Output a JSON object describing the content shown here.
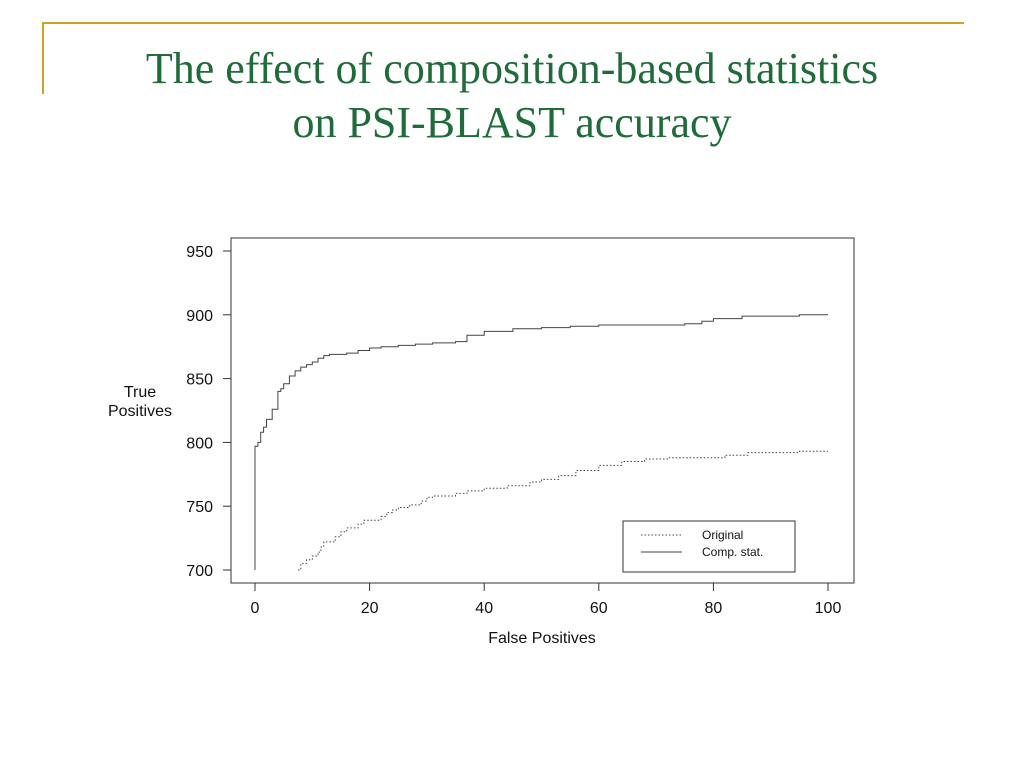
{
  "slide": {
    "title_line1": "The effect of composition-based statistics",
    "title_line2": "on PSI-BLAST accuracy",
    "accent_color": "#c9a227",
    "title_color": "#1f6b3a"
  },
  "chart_data": {
    "type": "line",
    "title": "",
    "xlabel": "False Positives",
    "ylabel_lines": [
      "True",
      "Positives"
    ],
    "xlim": [
      0,
      100
    ],
    "ylim": [
      700,
      950
    ],
    "xticks": [
      0,
      20,
      40,
      60,
      80,
      100
    ],
    "yticks": [
      700,
      750,
      800,
      850,
      900,
      950
    ],
    "xtick_labels": [
      "0",
      "20",
      "40",
      "60",
      "80",
      "100"
    ],
    "ytick_labels": [
      "700",
      "750",
      "800",
      "850",
      "900",
      "950"
    ],
    "grid": false,
    "legend": {
      "position": "bottom-right",
      "entries": [
        "Original",
        "Comp. stat."
      ]
    },
    "series": [
      {
        "name": "Original",
        "style": "dotted",
        "color": "#444444",
        "x": [
          7.5,
          8,
          9,
          10,
          11,
          11.5,
          12,
          14,
          15,
          16,
          18,
          19,
          22,
          23,
          24,
          25,
          27,
          29,
          30,
          31,
          35,
          37,
          40,
          44,
          48,
          50,
          53,
          56,
          60,
          64,
          68,
          72,
          76,
          79,
          82,
          86,
          90,
          95,
          100
        ],
        "values": [
          700,
          705,
          708,
          711,
          714,
          718,
          722,
          726,
          730,
          733,
          736,
          739,
          742,
          745,
          747,
          749,
          751,
          754,
          757,
          758,
          760,
          762,
          764,
          766,
          769,
          771,
          774,
          778,
          782,
          785,
          787,
          788,
          788,
          788,
          790,
          792,
          792,
          793,
          793
        ]
      },
      {
        "name": "Comp. stat.",
        "style": "solid",
        "color": "#444444",
        "x": [
          0,
          0,
          0.5,
          1,
          1.5,
          2,
          3,
          4,
          4.5,
          5,
          6,
          7,
          8,
          9,
          10,
          11,
          12,
          13,
          14,
          16,
          18,
          20,
          22,
          25,
          28,
          31,
          35,
          37,
          40,
          45,
          50,
          55,
          60,
          65,
          70,
          75,
          78,
          80,
          85,
          90,
          95,
          100
        ],
        "values": [
          700,
          797,
          800,
          808,
          812,
          818,
          826,
          840,
          842,
          846,
          852,
          856,
          859,
          861,
          863,
          866,
          868,
          869,
          869,
          870,
          872,
          874,
          875,
          876,
          877,
          878,
          879,
          884,
          887,
          889,
          890,
          891,
          892,
          892,
          892,
          893,
          895,
          897,
          899,
          899,
          900,
          900
        ]
      }
    ]
  }
}
